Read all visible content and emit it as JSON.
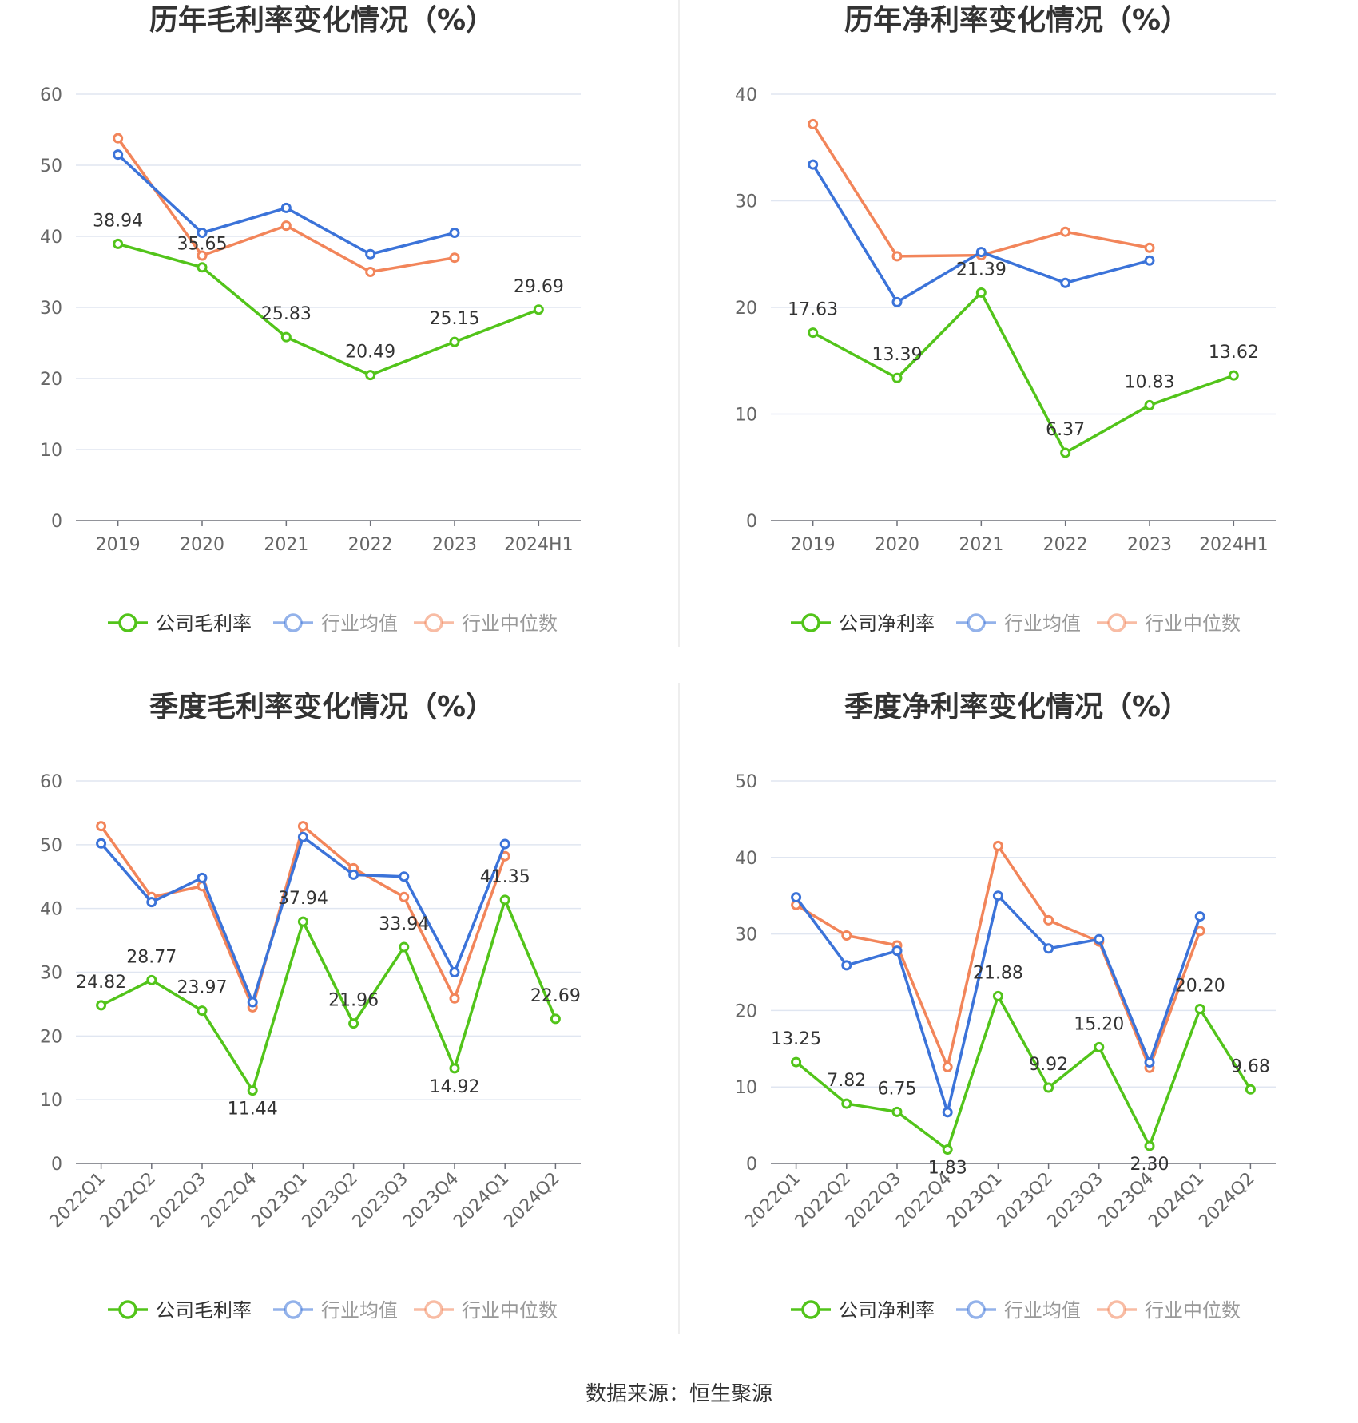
{
  "colors": {
    "company": "#52c41a",
    "industry_mean": "#3b73d9",
    "industry_median": "#f2855a",
    "grid": "#e0e6f1",
    "axis": "#6e7079"
  },
  "chart_data": [
    {
      "type": "line",
      "title": "历年毛利率变化情况（%）",
      "categories": [
        "2019",
        "2020",
        "2021",
        "2022",
        "2023",
        "2024H1"
      ],
      "ylim": [
        0,
        60
      ],
      "yticks": [
        0,
        10,
        20,
        30,
        40,
        50,
        60
      ],
      "grid": true,
      "legend": "bottom",
      "series": [
        {
          "name": "公司毛利率",
          "values": [
            38.94,
            35.65,
            25.83,
            20.49,
            25.15,
            29.69
          ],
          "labels": [
            "38.94",
            "35.65",
            "25.83",
            "20.49",
            "25.15",
            "29.69"
          ]
        },
        {
          "name": "行业均值",
          "values": [
            51.5,
            40.5,
            44.0,
            37.5,
            40.5,
            null
          ]
        },
        {
          "name": "行业中位数",
          "values": [
            53.8,
            37.3,
            41.5,
            35.0,
            37.0,
            null
          ]
        }
      ]
    },
    {
      "type": "line",
      "title": "历年净利率变化情况（%）",
      "categories": [
        "2019",
        "2020",
        "2021",
        "2022",
        "2023",
        "2024H1"
      ],
      "ylim": [
        0,
        40
      ],
      "yticks": [
        0,
        10,
        20,
        30,
        40
      ],
      "grid": true,
      "legend": "bottom",
      "series": [
        {
          "name": "公司净利率",
          "values": [
            17.63,
            13.39,
            21.39,
            6.37,
            10.83,
            13.62
          ],
          "labels": [
            "17.63",
            "13.39",
            "21.39",
            "6.37",
            "10.83",
            "13.62"
          ]
        },
        {
          "name": "行业均值",
          "values": [
            33.4,
            20.5,
            25.2,
            22.3,
            24.4,
            null
          ]
        },
        {
          "name": "行业中位数",
          "values": [
            37.2,
            24.8,
            24.9,
            27.1,
            25.6,
            null
          ]
        }
      ]
    },
    {
      "type": "line",
      "title": "季度毛利率变化情况（%）",
      "categories": [
        "2022Q1",
        "2022Q2",
        "2022Q3",
        "2022Q4",
        "2023Q1",
        "2023Q2",
        "2023Q3",
        "2023Q4",
        "2024Q1",
        "2024Q2"
      ],
      "ylim": [
        0,
        60
      ],
      "yticks": [
        0,
        10,
        20,
        30,
        40,
        50,
        60
      ],
      "grid": true,
      "legend": "bottom",
      "series": [
        {
          "name": "公司毛利率",
          "values": [
            24.82,
            28.77,
            23.97,
            11.44,
            37.94,
            21.96,
            33.94,
            14.92,
            41.35,
            22.69
          ],
          "labels": [
            "24.82",
            "28.77",
            "23.97",
            "11.44",
            "37.94",
            "21.96",
            "33.94",
            "14.92",
            "41.35",
            "22.69"
          ]
        },
        {
          "name": "行业均值",
          "values": [
            50.2,
            41.0,
            44.8,
            25.3,
            51.2,
            45.3,
            45.0,
            30.0,
            50.1,
            null
          ]
        },
        {
          "name": "行业中位数",
          "values": [
            52.9,
            41.8,
            43.5,
            24.5,
            52.9,
            46.3,
            41.8,
            25.9,
            48.2,
            null
          ]
        }
      ]
    },
    {
      "type": "line",
      "title": "季度净利率变化情况（%）",
      "categories": [
        "2022Q1",
        "2022Q2",
        "2022Q3",
        "2022Q4",
        "2023Q1",
        "2023Q2",
        "2023Q3",
        "2023Q4",
        "2024Q1",
        "2024Q2"
      ],
      "ylim": [
        0,
        50
      ],
      "yticks": [
        0,
        10,
        20,
        30,
        40,
        50
      ],
      "grid": true,
      "legend": "bottom",
      "series": [
        {
          "name": "公司净利率",
          "values": [
            13.25,
            7.82,
            6.75,
            1.83,
            21.88,
            9.92,
            15.2,
            2.3,
            20.2,
            9.68
          ],
          "labels": [
            "13.25",
            "7.82",
            "6.75",
            "1.83",
            "21.88",
            "9.92",
            "15.20",
            "2.30",
            "20.20",
            "9.68"
          ]
        },
        {
          "name": "行业均值",
          "values": [
            34.8,
            25.9,
            27.8,
            6.7,
            35.0,
            28.1,
            29.3,
            13.2,
            32.3,
            null
          ]
        },
        {
          "name": "行业中位数",
          "values": [
            33.8,
            29.8,
            28.5,
            12.6,
            41.5,
            31.8,
            29.0,
            12.5,
            30.4,
            null
          ]
        }
      ]
    }
  ],
  "footer": {
    "source": "数据来源：恒生聚源"
  }
}
